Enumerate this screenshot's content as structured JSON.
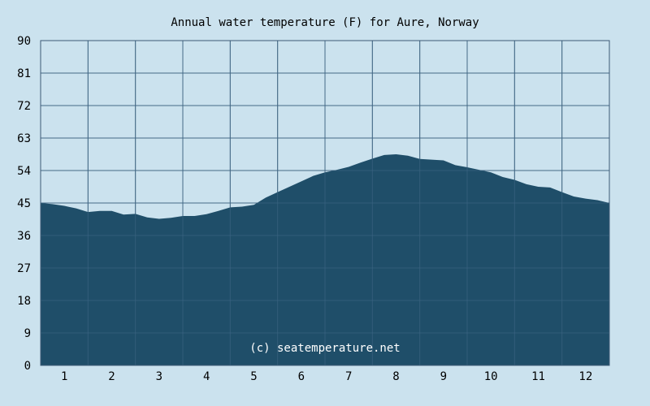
{
  "chart_data": {
    "type": "area",
    "title": "Annual water temperature (F) for Aure, Norway",
    "xlabel": "",
    "ylabel": "",
    "xlim": [
      0.5,
      12.5
    ],
    "ylim": [
      0,
      90
    ],
    "grid": true,
    "x_ticks": [
      "1",
      "2",
      "3",
      "4",
      "5",
      "6",
      "7",
      "8",
      "9",
      "10",
      "11",
      "12"
    ],
    "y_ticks": [
      "0",
      "9",
      "18",
      "27",
      "36",
      "45",
      "54",
      "63",
      "72",
      "81",
      "90"
    ],
    "x": [
      0.5,
      0.75,
      1.0,
      1.25,
      1.5,
      1.75,
      2.0,
      2.25,
      2.5,
      2.75,
      3.0,
      3.25,
      3.5,
      3.75,
      4.0,
      4.25,
      4.5,
      4.75,
      5.0,
      5.25,
      5.5,
      5.75,
      6.0,
      6.25,
      6.5,
      6.75,
      7.0,
      7.25,
      7.5,
      7.75,
      8.0,
      8.25,
      8.5,
      8.75,
      9.0,
      9.25,
      9.5,
      9.75,
      10.0,
      10.25,
      10.5,
      10.75,
      11.0,
      11.25,
      11.5,
      11.75,
      12.0,
      12.25,
      12.5
    ],
    "series": [
      {
        "values": [
          45.0,
          44.7,
          44.2,
          43.5,
          42.5,
          42.8,
          42.8,
          41.8,
          42.0,
          41.0,
          40.6,
          40.9,
          41.4,
          41.4,
          41.9,
          42.8,
          43.8,
          44.0,
          44.5,
          46.5,
          48.0,
          49.5,
          51.0,
          52.5,
          53.5,
          54.2,
          55.0,
          56.2,
          57.3,
          58.3,
          58.5,
          58.1,
          57.2,
          57.0,
          56.8,
          55.5,
          54.9,
          54.2,
          53.5,
          52.2,
          51.4,
          50.2,
          49.5,
          49.3,
          48.0,
          46.8,
          46.2,
          45.8,
          45.0
        ],
        "color": "#1f4e69"
      }
    ],
    "watermark": "(c) seatemperature.net",
    "colors": {
      "background": "#cbe2ee",
      "grid": "#4a6a85",
      "fill": "#1f4e69"
    }
  }
}
